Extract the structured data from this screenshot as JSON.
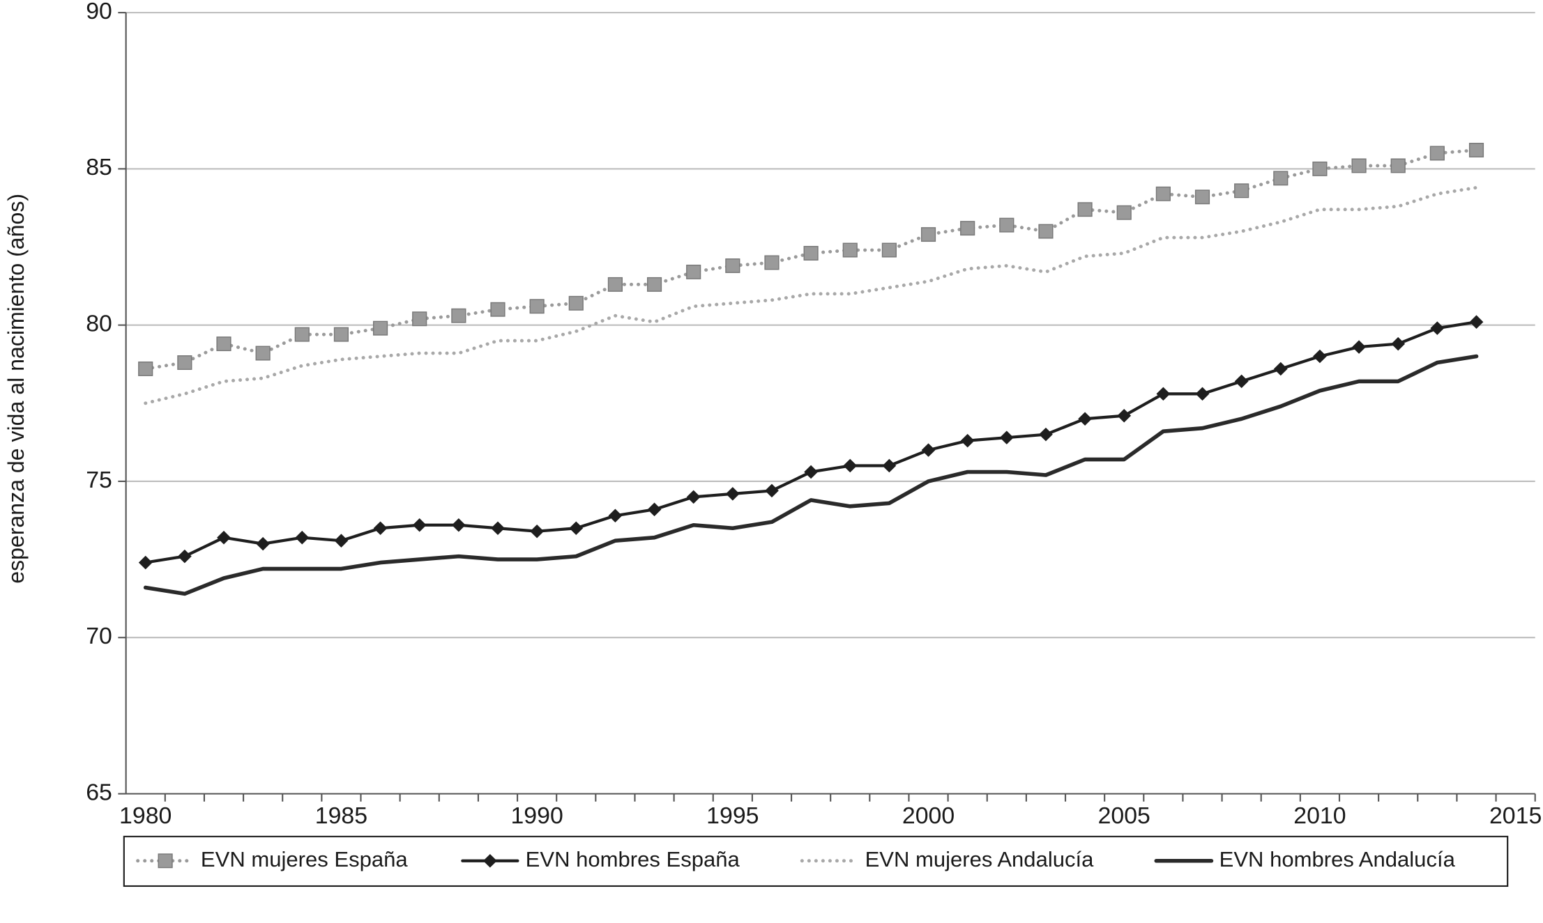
{
  "chart_data": {
    "type": "line",
    "y_label": "esperanza de vida al nacimiento (años)",
    "categories": [
      "1980",
      null,
      null,
      null,
      null,
      "1985",
      null,
      null,
      null,
      null,
      "1990",
      null,
      null,
      null,
      null,
      "1995",
      null,
      null,
      null,
      null,
      "2000",
      null,
      null,
      null,
      null,
      "2005",
      null,
      null,
      null,
      null,
      "2010",
      null,
      null,
      null,
      null,
      "2015"
    ],
    "ylim": [
      65,
      90
    ],
    "yticks": [
      65,
      70,
      75,
      80,
      85,
      90
    ],
    "grid": true,
    "legend": "bottom",
    "series": [
      {
        "name": "EVN mujeres España",
        "color": "#9a9a9a",
        "marker": "square",
        "dash": "dotted",
        "values": [
          78.6,
          78.8,
          79.4,
          79.1,
          79.7,
          79.7,
          79.9,
          80.2,
          80.3,
          80.5,
          80.6,
          80.7,
          81.3,
          81.3,
          81.7,
          81.9,
          82.0,
          82.3,
          82.4,
          82.4,
          82.9,
          83.1,
          83.2,
          83.0,
          83.7,
          83.6,
          84.2,
          84.1,
          84.3,
          84.7,
          85.0,
          85.1,
          85.1,
          85.5,
          85.6,
          null
        ]
      },
      {
        "name": "EVN hombres España",
        "color": "#1e1e1e",
        "marker": "diamond",
        "dash": "solid",
        "values": [
          72.4,
          72.6,
          73.2,
          73.0,
          73.2,
          73.1,
          73.5,
          73.6,
          73.6,
          73.5,
          73.4,
          73.5,
          73.9,
          74.1,
          74.5,
          74.6,
          74.7,
          75.3,
          75.5,
          75.5,
          76.0,
          76.3,
          76.4,
          76.5,
          77.0,
          77.1,
          77.8,
          77.8,
          78.2,
          78.6,
          79.0,
          79.3,
          79.4,
          79.9,
          80.1,
          null
        ]
      },
      {
        "name": "EVN mujeres Andalucía",
        "color": "#a8a8a8",
        "marker": "none",
        "dash": "dotted",
        "values": [
          77.5,
          77.8,
          78.2,
          78.3,
          78.7,
          78.9,
          79.0,
          79.1,
          79.1,
          79.5,
          79.5,
          79.8,
          80.3,
          80.1,
          80.6,
          80.7,
          80.8,
          81.0,
          81.0,
          81.2,
          81.4,
          81.8,
          81.9,
          81.7,
          82.2,
          82.3,
          82.8,
          82.8,
          83.0,
          83.3,
          83.7,
          83.7,
          83.8,
          84.2,
          84.4,
          null
        ]
      },
      {
        "name": "EVN hombres Andalucía",
        "color": "#2a2a2a",
        "marker": "none",
        "dash": "solid",
        "values": [
          71.6,
          71.4,
          71.9,
          72.2,
          72.2,
          72.2,
          72.4,
          72.5,
          72.6,
          72.5,
          72.5,
          72.6,
          73.1,
          73.2,
          73.6,
          73.5,
          73.7,
          74.4,
          74.2,
          74.3,
          75.0,
          75.3,
          75.3,
          75.2,
          75.7,
          75.7,
          76.6,
          76.7,
          77.0,
          77.4,
          77.9,
          78.2,
          78.2,
          78.8,
          79.0,
          null
        ]
      }
    ]
  }
}
